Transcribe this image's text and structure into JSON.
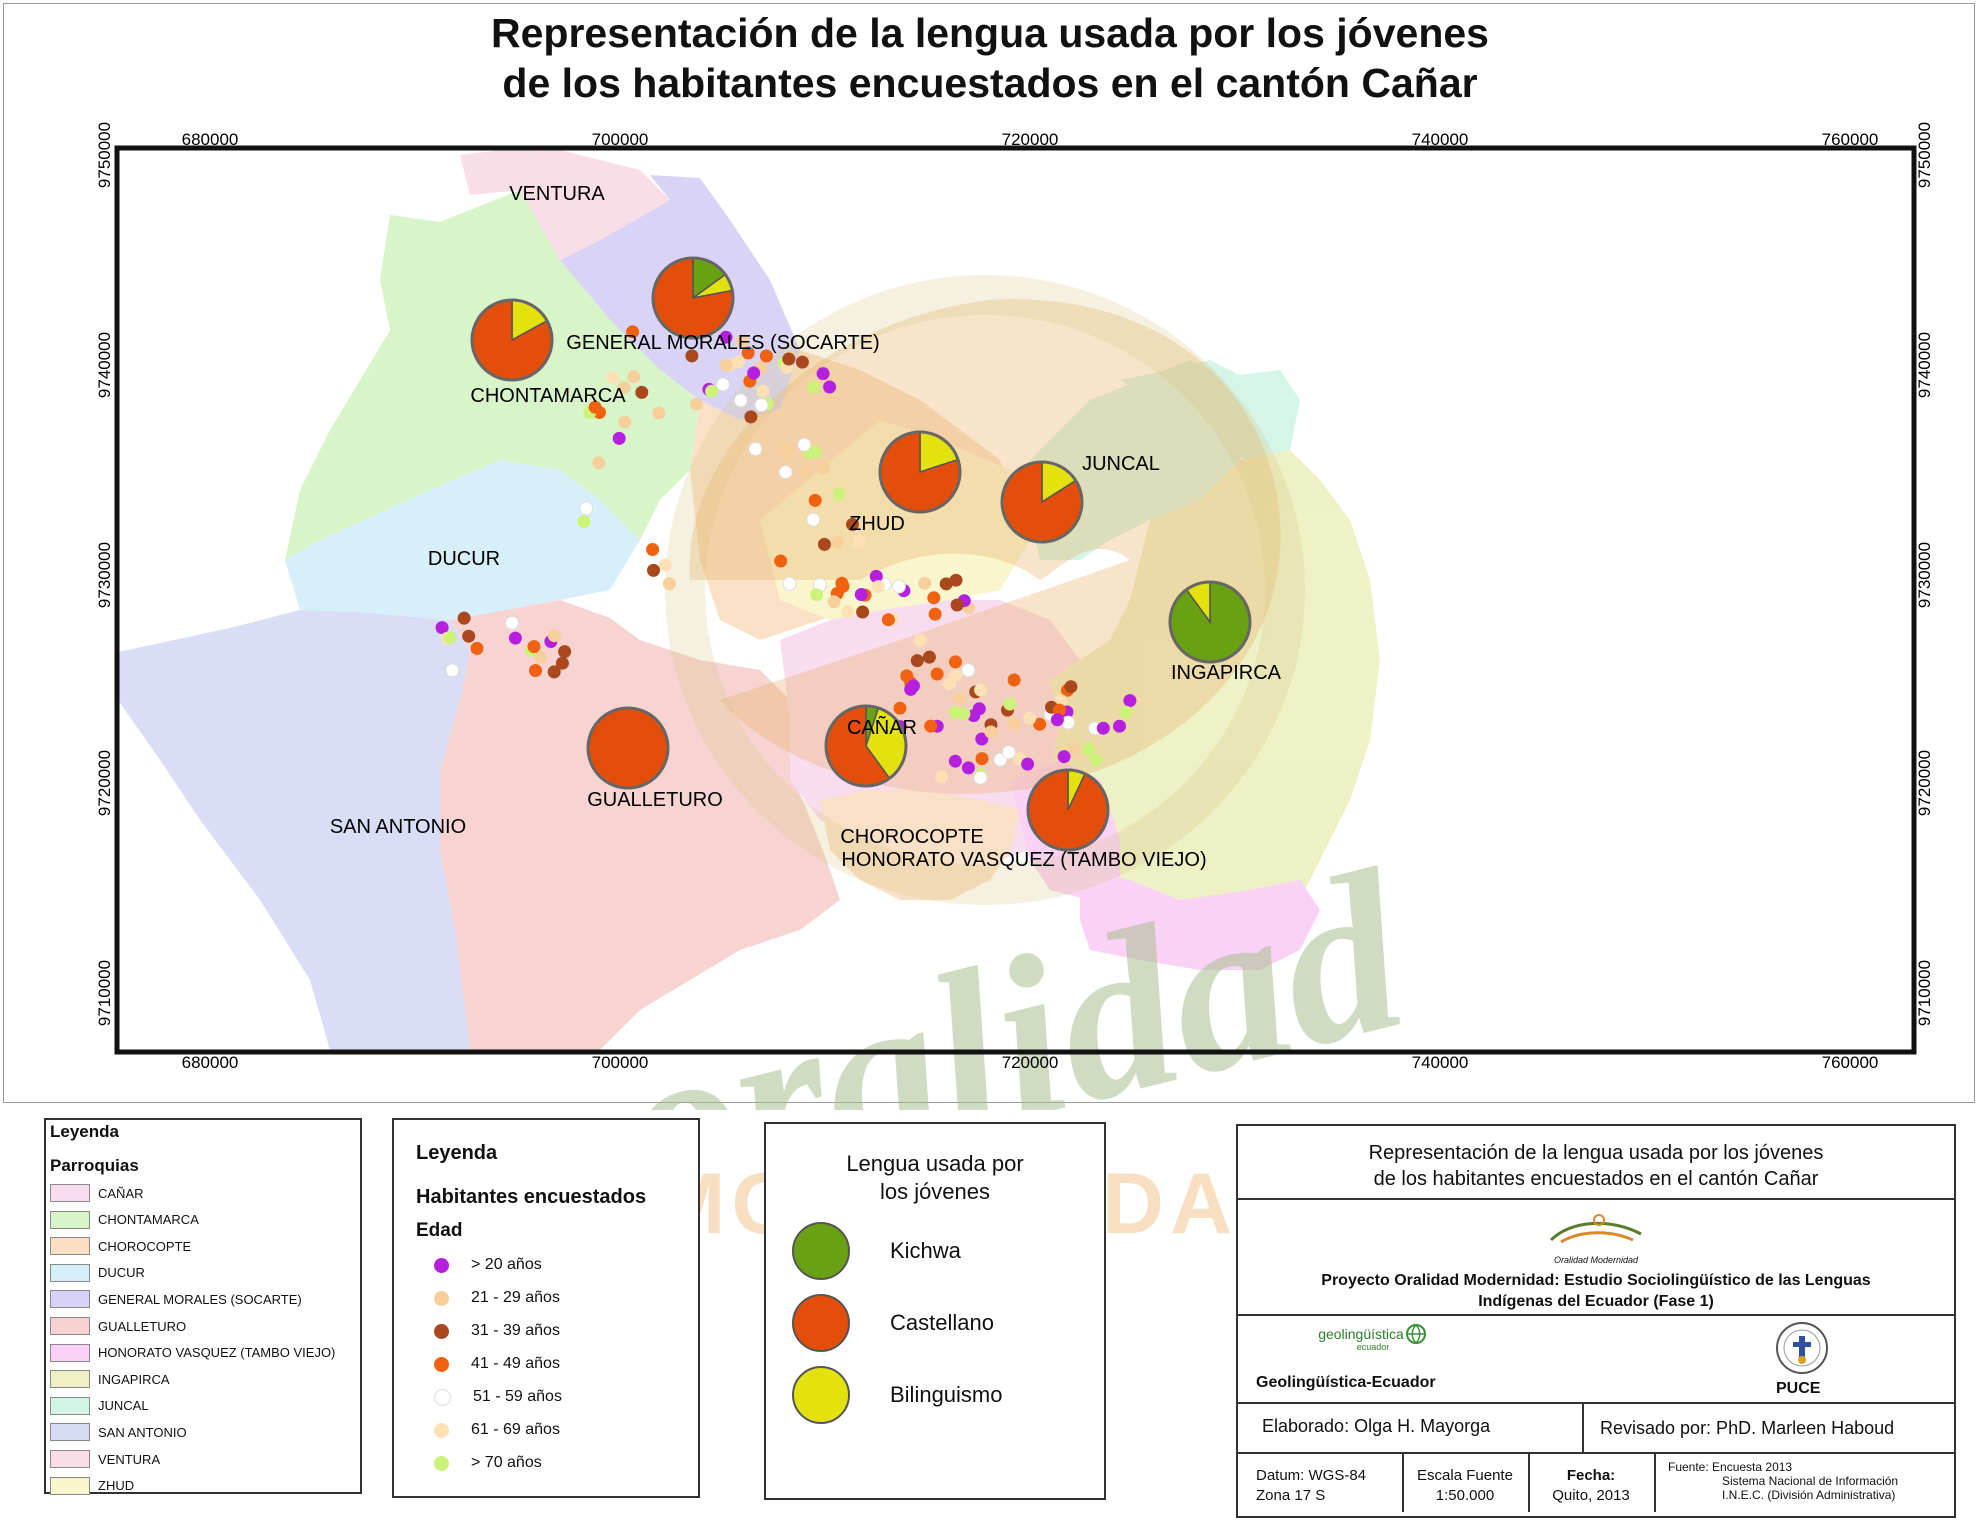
{
  "title": {
    "line1": "Representación de la lengua usada por los jóvenes",
    "line2": "de los habitantes encuestados en el cantón Cañar"
  },
  "map": {
    "x_ticks": [
      "680000",
      "700000",
      "720000",
      "740000",
      "760000"
    ],
    "y_ticks": [
      "9750000",
      "9740000",
      "9730000",
      "9720000",
      "9710000"
    ],
    "parish_labels": {
      "ventura": "VENTURA",
      "general_morales": "GENERAL MORALES (SOCARTE)",
      "chontamarca": "CHONTAMARCA",
      "juncal": "JUNCAL",
      "zhud": "ZHUD",
      "ducur": "DUCUR",
      "ingapirca": "INGAPIRCA",
      "canar": "CAÑAR",
      "gualleturo": "GUALLETURO",
      "san_antonio": "SAN ANTONIO",
      "chorocopte": "CHOROCOPTE",
      "honorato": "HONORATO VASQUEZ (TAMBO VIEJO)"
    },
    "watermark": {
      "line1": "oralidad",
      "line2": "MODERNIDAD"
    },
    "pies": [
      {
        "parish": "GENERAL MORALES (SOCARTE)",
        "castellano": 0.78,
        "kichwa": 0.15,
        "bilinguismo": 0.07
      },
      {
        "parish": "CHONTAMARCA",
        "castellano": 0.83,
        "kichwa": 0.0,
        "bilinguismo": 0.17
      },
      {
        "parish": "ZHUD",
        "castellano": 0.8,
        "kichwa": 0.0,
        "bilinguismo": 0.2
      },
      {
        "parish": "JUNCAL",
        "castellano": 0.84,
        "kichwa": 0.0,
        "bilinguismo": 0.16
      },
      {
        "parish": "INGAPIRCA",
        "castellano": 0.0,
        "kichwa": 0.9,
        "bilinguismo": 0.1
      },
      {
        "parish": "CAÑAR",
        "castellano": 0.6,
        "kichwa": 0.05,
        "bilinguismo": 0.35
      },
      {
        "parish": "GUALLETURO",
        "castellano": 1.0,
        "kichwa": 0.0,
        "bilinguismo": 0.0
      },
      {
        "parish": "HONORATO VASQUEZ (TAMBO VIEJO)",
        "castellano": 0.93,
        "kichwa": 0.0,
        "bilinguismo": 0.07
      }
    ]
  },
  "legend_parroquias": {
    "title": "Leyenda",
    "subtitle": "Parroquias",
    "items": [
      {
        "label": "CAÑAR",
        "color": "#f9dcef"
      },
      {
        "label": "CHONTAMARCA",
        "color": "#d6f5c8"
      },
      {
        "label": "CHOROCOPTE",
        "color": "#fadfc4"
      },
      {
        "label": "DUCUR",
        "color": "#d4effa"
      },
      {
        "label": "GENERAL MORALES (SOCARTE)",
        "color": "#d7d2f6"
      },
      {
        "label": "GUALLETURO",
        "color": "#f7d2d0"
      },
      {
        "label": "HONORATO VASQUEZ (TAMBO VIEJO)",
        "color": "#f9d0f6"
      },
      {
        "label": "INGAPIRCA",
        "color": "#eef0c4"
      },
      {
        "label": "JUNCAL",
        "color": "#d3f5e6"
      },
      {
        "label": "SAN ANTONIO",
        "color": "#d7dcf6"
      },
      {
        "label": "VENTURA",
        "color": "#fadde6"
      },
      {
        "label": "ZHUD",
        "color": "#f9f6cc"
      }
    ]
  },
  "legend_habitantes": {
    "title": "Leyenda",
    "subtitle": "Habitantes encuestados",
    "edad": "Edad",
    "items": [
      {
        "label": "> 20 años",
        "color": "#b51fe0"
      },
      {
        "label": "21 - 29  años",
        "color": "#f7cf9a"
      },
      {
        "label": "31 - 39 años",
        "color": "#a8481c"
      },
      {
        "label": "41 - 49 años",
        "color": "#f0620f"
      },
      {
        "label": "51 - 59 años",
        "color": "#ffffff"
      },
      {
        "label": "61 - 69 años",
        "color": "#fde0b3"
      },
      {
        "label": "> 70 años",
        "color": "#cdf27a"
      }
    ]
  },
  "legend_lengua": {
    "title_line1": "Lengua usada por",
    "title_line2": "los jóvenes",
    "items": [
      {
        "label": "Kichwa",
        "color": "#6aa112"
      },
      {
        "label": "Castellano",
        "color": "#e34f0a"
      },
      {
        "label": "Bilinguismo",
        "color": "#e3e10e"
      }
    ]
  },
  "info_box": {
    "title_line1": "Representación de la lengua usada por los jóvenes",
    "title_line2": "de los habitantes encuestados en el cantón Cañar",
    "logo_text": "Oralidad Modernidad",
    "project_line1": "Proyecto Oralidad Modernidad: Estudio Sociolingüístico de las Lenguas",
    "project_line2": "Indígenas del Ecuador  (Fase 1)",
    "geo_logo": "geolingüística",
    "geo_logo_sub": "ecuador",
    "geo_label": "Geolingüística-Ecuador",
    "puce_label": "PUCE",
    "elaborado": "Elaborado: Olga H. Mayorga",
    "revisado": "Revisado por: PhD. Marleen Haboud",
    "datum_line1": "Datum: WGS-84",
    "datum_line2": "Zona 17 S",
    "escala_line1": "Escala Fuente",
    "escala_line2": "1:50.000",
    "fecha_line1": "Fecha:",
    "fecha_line2": "Quito, 2013",
    "fuente_line1": "Fuente: Encuesta 2013",
    "fuente_line2": "Sistema Nacional de Información",
    "fuente_line3": "I.N.E.C. (División Administrativa)"
  }
}
